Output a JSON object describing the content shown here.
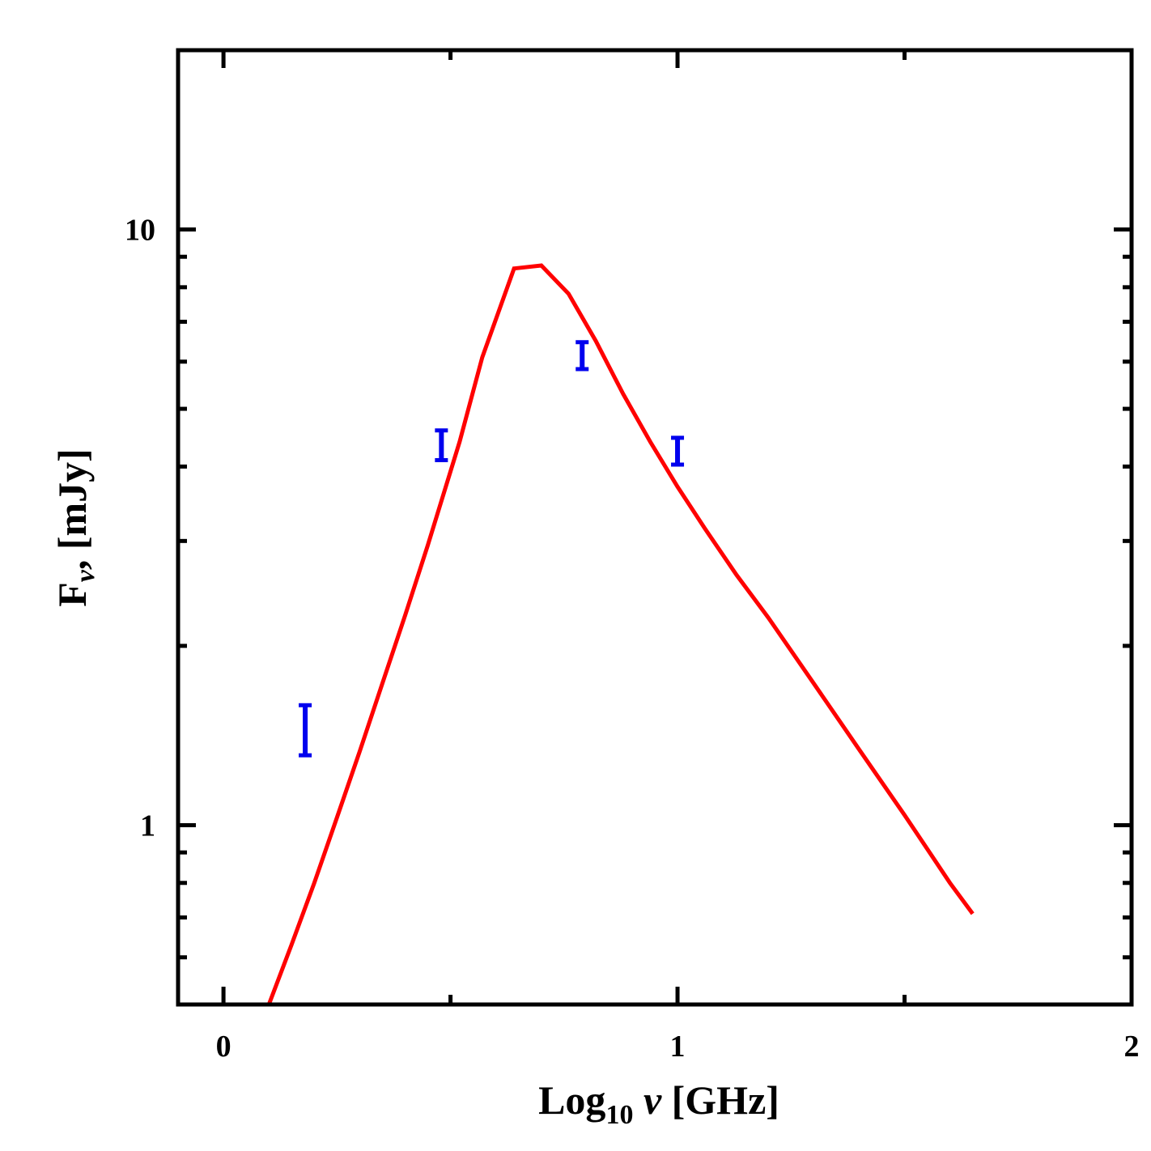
{
  "chart_data": {
    "type": "line",
    "title": "",
    "xlabel": {
      "main": "Log",
      "subscript": "10",
      "symbol": "ν",
      "unit": "[GHz]"
    },
    "ylabel": {
      "main": "F",
      "subscript": "ν",
      "unit": ", [mJy]"
    },
    "xlim": [
      -0.1,
      2.0
    ],
    "ylim": [
      0.5,
      20
    ],
    "yscale": "log",
    "x_ticks": [
      0,
      1,
      2
    ],
    "x_tick_labels": [
      "0",
      "1",
      "2"
    ],
    "y_ticks": [
      1,
      10
    ],
    "y_tick_labels": [
      "1",
      "10"
    ],
    "grid": false,
    "legend": "none",
    "colors": {
      "model": "#ff0000",
      "observed": "#0000ee",
      "axes": "#000000"
    },
    "series": [
      {
        "kind": "line",
        "x": [
          0.1,
          0.15,
          0.2,
          0.25,
          0.3,
          0.35,
          0.4,
          0.45,
          0.52,
          0.57,
          0.64,
          0.7,
          0.76,
          0.82,
          0.88,
          0.94,
          1.0,
          1.06,
          1.13,
          1.2,
          1.3,
          1.4,
          1.5,
          1.6,
          1.65
        ],
        "y": [
          0.5,
          0.63,
          0.8,
          1.03,
          1.33,
          1.73,
          2.25,
          2.95,
          4.4,
          6.1,
          8.6,
          8.7,
          7.8,
          6.5,
          5.3,
          4.4,
          3.7,
          3.15,
          2.63,
          2.23,
          1.73,
          1.34,
          1.04,
          0.8,
          0.71
        ]
      },
      {
        "kind": "errorbar",
        "x": [
          0.18,
          0.48,
          0.79,
          1.0
        ],
        "y": [
          1.45,
          4.35,
          6.15,
          4.25
        ],
        "yerr": [
          0.14,
          0.25,
          0.32,
          0.22
        ]
      }
    ]
  }
}
